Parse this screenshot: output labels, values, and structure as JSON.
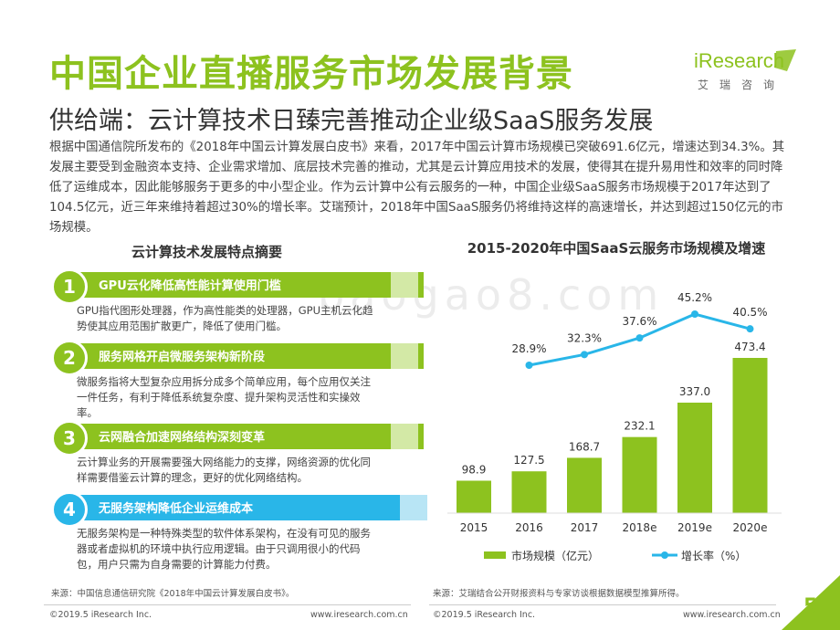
{
  "header": {
    "title": "中国企业直播服务市场发展背景",
    "subtitle": "供给端：云计算技术日臻完善推动企业级SaaS服务发展",
    "logo_text": "iResearch",
    "logo_sub": "艾瑞咨询"
  },
  "intro": "根据中国通信院所发布的《2018年中国云计算发展白皮书》来看，2017年中国云计算市场规模已突破691.6亿元，增速达到34.3%。其发展主要受到金融资本支持、企业需求增加、底层技术完善的推动，尤其是云计算应用技术的发展，使得其在提升易用性和效率的同时降低了运维成本，因此能够服务于更多的中小型企业。作为云计算中公有云服务的一种，中国企业级SaaS服务市场规模于2017年达到了104.5亿元，近三年来维持着超过30%的增长率。艾瑞预计，2018年中国SaaS服务仍将维持这样的高速增长，并达到超过150亿元的市场规模。",
  "watermark": "baogao8.com",
  "left_panel": {
    "heading": "云计算技术发展特点摘要",
    "items": [
      {
        "num": "1",
        "label": "GPU云化降低高性能计算使用门槛",
        "desc": "GPU指代图形处理器，作为高性能类的处理器，GPU主机云化趋势使其应用范围扩散更广，降低了使用门槛。",
        "color": "#8dc21f",
        "tail": "#d3e9a6"
      },
      {
        "num": "2",
        "label": "服务网格开启微服务架构新阶段",
        "desc": "微服务指将大型复杂应用拆分成多个简单应用，每个应用仅关注一件任务，有利于降低系统复杂度、提升架构灵活性和实操效率。",
        "color": "#8dc21f",
        "tail": "#d3e9a6"
      },
      {
        "num": "3",
        "label": "云网融合加速网络结构深刻变革",
        "desc": "云计算业务的开展需要强大网络能力的支撑，网络资源的优化同样需要借鉴云计算的理念，更好的优化网络结构。",
        "color": "#8dc21f",
        "tail": "#d3e9a6"
      },
      {
        "num": "4",
        "label": "无服务架构降低企业运维成本",
        "desc": "无服务架构是一种特殊类型的软件体系架构，在没有可见的服务器或者虚拟机的环境中执行应用逻辑。由于只调用很小的代码包，用户只需为自身需要的计算能力付费。",
        "color": "#29b6e8",
        "tail": "#b8e5f5"
      }
    ]
  },
  "chart_data": {
    "type": "bar",
    "title": "2015-2020年中国SaaS云服务市场规模及增速",
    "categories": [
      "2015",
      "2016",
      "2017",
      "2018e",
      "2019e",
      "2020e"
    ],
    "series": [
      {
        "name": "市场规模（亿元）",
        "type": "bar",
        "values": [
          98.9,
          127.5,
          168.7,
          232.1,
          337.0,
          473.4
        ],
        "labels": [
          "98.9",
          "127.5",
          "168.7",
          "232.1",
          "337.0",
          "473.4"
        ],
        "color": "#8dc21f"
      },
      {
        "name": "增长率（%）",
        "type": "line",
        "values": [
          null,
          28.9,
          32.3,
          37.6,
          45.2,
          40.5
        ],
        "labels": [
          "",
          "28.9%",
          "32.3%",
          "37.6%",
          "45.2%",
          "40.5%"
        ],
        "color": "#29b6e8"
      }
    ],
    "legend_position": "bottom",
    "grid": false
  },
  "footer": {
    "source_left": "来源：中国信息通信研究院《2018年中国云计算发展白皮书》。",
    "source_right": "来源：艾瑞结合公开财报资料与专家访谈根据数据模型推算所得。",
    "copyright_left": "©2019.5 iResearch Inc.",
    "url_left": "www.iresearch.com.cn",
    "copyright_right": "©2019.5 iResearch Inc.",
    "url_right": "www.iresearch.com.cn",
    "page": "5"
  }
}
